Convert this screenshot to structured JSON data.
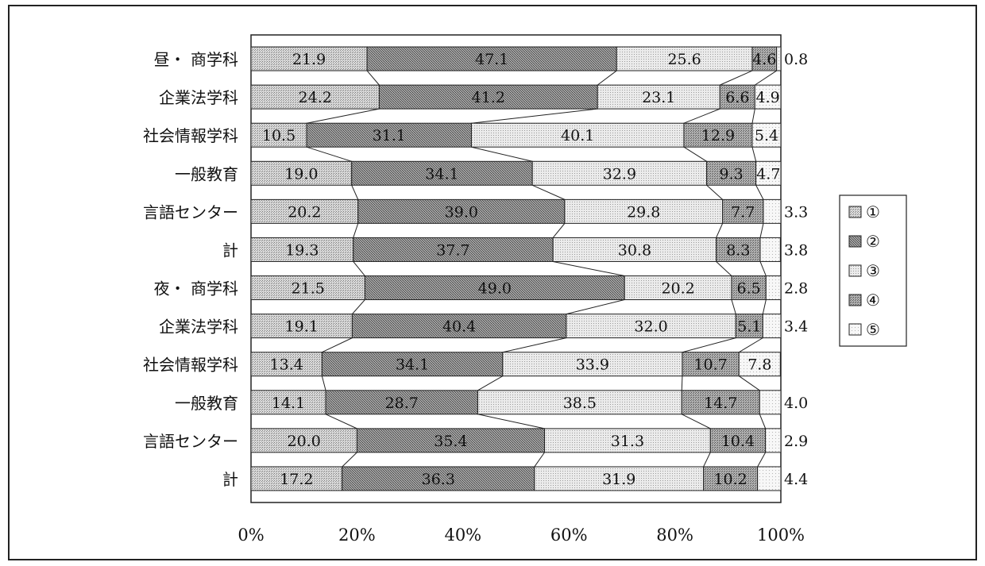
{
  "chart_data": {
    "type": "bar",
    "stacked": true,
    "orientation": "horizontal",
    "normalized_100": true,
    "categories": [
      "昼・ 商学科",
      "企業法学科",
      "社会情報学科",
      "一般教育",
      "言語センター",
      "計",
      "夜・ 商学科",
      "企業法学科",
      "社会情報学科",
      "一般教育",
      "言語センター",
      "計"
    ],
    "series": [
      {
        "name": "①",
        "values": [
          21.9,
          24.2,
          10.5,
          19.0,
          20.2,
          19.3,
          21.5,
          19.1,
          13.4,
          14.1,
          20.0,
          17.2
        ],
        "labels": [
          "21.9",
          "24.2",
          "10.5",
          "19.0",
          "20.2",
          "19.3",
          "21.5",
          "19.1",
          "13.4",
          "14.1",
          "20.0",
          "17.2"
        ]
      },
      {
        "name": "②",
        "values": [
          47.1,
          41.2,
          31.1,
          34.1,
          39.0,
          37.7,
          49.0,
          40.4,
          34.1,
          28.7,
          35.4,
          36.3
        ],
        "labels": [
          "47.1",
          "41.2",
          "31.1",
          "34.1",
          "39.0",
          "37.7",
          "49.0",
          "40.4",
          "34.1",
          "28.7",
          "35.4",
          "36.3"
        ]
      },
      {
        "name": "③",
        "values": [
          25.6,
          23.1,
          40.1,
          32.9,
          29.8,
          30.8,
          20.2,
          32.0,
          33.9,
          38.5,
          31.3,
          31.9
        ],
        "labels": [
          "25.6",
          "23.1",
          "40.1",
          "32.9",
          "29.8",
          "30.8",
          "20.2",
          "32.0",
          "33.9",
          "38.5",
          "31.3",
          "31.9"
        ]
      },
      {
        "name": "④",
        "values": [
          4.6,
          6.6,
          12.9,
          9.3,
          7.7,
          8.3,
          6.5,
          5.1,
          10.7,
          14.7,
          10.4,
          10.2
        ],
        "labels": [
          "4.6",
          "6.6",
          "12.9",
          "9.3",
          "7.7",
          "8.3",
          "6.5",
          "5.1",
          "10.7",
          "14.7",
          "10.4",
          "10.2"
        ]
      },
      {
        "name": "⑤",
        "values": [
          0.8,
          4.9,
          5.4,
          4.7,
          3.3,
          3.8,
          2.8,
          3.4,
          7.8,
          4.0,
          2.9,
          4.4
        ],
        "labels": [
          "0.8",
          "4.9",
          "5.4",
          "4.7",
          "3.3",
          "3.8",
          "2.8",
          "3.4",
          "7.8",
          "4.0",
          "2.9",
          "4.4"
        ]
      }
    ],
    "xticks": [
      "0%",
      "20%",
      "40%",
      "60%",
      "80%",
      "100%"
    ],
    "xlim": [
      0,
      100
    ],
    "series_lines": true,
    "legend_position": "right",
    "colors": {
      "s1": "#d2d2d2",
      "s2": "#9a9a9a",
      "s3": "#e4e4e4",
      "s4": "#a6a6a6",
      "s5": "#f2f2f2",
      "stroke": "#222222"
    }
  }
}
